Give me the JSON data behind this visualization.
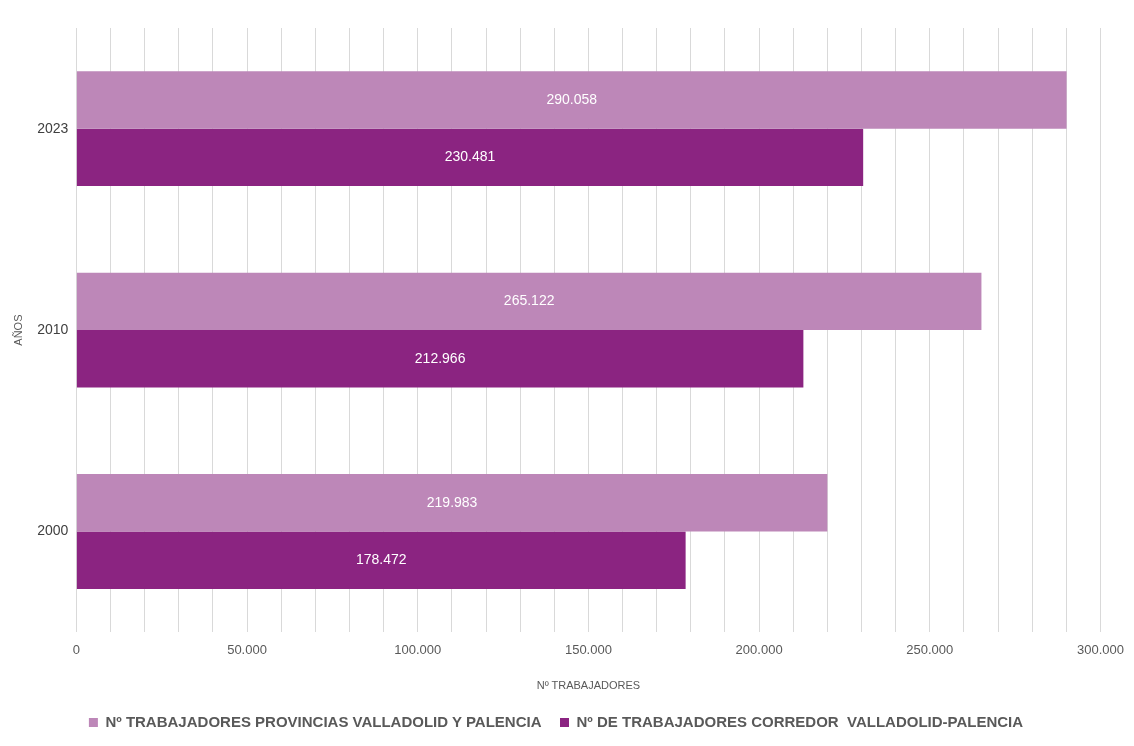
{
  "chart_data": {
    "type": "bar",
    "orientation": "horizontal",
    "categories": [
      "2023",
      "2010",
      "2000"
    ],
    "series": [
      {
        "name": "Nº TRABAJADORES PROVINCIAS VALLADOLID Y PALENCIA",
        "color": "#bd87b8",
        "values": [
          290058,
          265122,
          219983
        ],
        "value_labels": [
          "290.058",
          "265.122",
          "219.983"
        ]
      },
      {
        "name": "Nº DE TRABAJADORES CORREDOR  VALLADOLID-PALENCIA",
        "color": "#8b2481",
        "values": [
          230481,
          212966,
          178472
        ],
        "value_labels": [
          "230.481",
          "212.966",
          "178.472"
        ]
      }
    ],
    "xlabel": "Nº TRABAJADORES",
    "ylabel": "AÑOS",
    "xlim": [
      0,
      300000
    ],
    "xticks": [
      {
        "value": 0,
        "label": "0"
      },
      {
        "value": 10000,
        "label": null
      },
      {
        "value": 20000,
        "label": null
      },
      {
        "value": 30000,
        "label": null
      },
      {
        "value": 40000,
        "label": null
      },
      {
        "value": 50000,
        "label": "50.000"
      },
      {
        "value": 60000,
        "label": null
      },
      {
        "value": 70000,
        "label": null
      },
      {
        "value": 80000,
        "label": null
      },
      {
        "value": 90000,
        "label": null
      },
      {
        "value": 100000,
        "label": "100.000"
      },
      {
        "value": 110000,
        "label": null
      },
      {
        "value": 120000,
        "label": null
      },
      {
        "value": 130000,
        "label": null
      },
      {
        "value": 140000,
        "label": null
      },
      {
        "value": 150000,
        "label": "150.000"
      },
      {
        "value": 160000,
        "label": null
      },
      {
        "value": 170000,
        "label": null
      },
      {
        "value": 180000,
        "label": null
      },
      {
        "value": 190000,
        "label": null
      },
      {
        "value": 200000,
        "label": "200.000"
      },
      {
        "value": 210000,
        "label": null
      },
      {
        "value": 220000,
        "label": null
      },
      {
        "value": 230000,
        "label": null
      },
      {
        "value": 240000,
        "label": null
      },
      {
        "value": 250000,
        "label": "250.000"
      },
      {
        "value": 260000,
        "label": null
      },
      {
        "value": 270000,
        "label": null
      },
      {
        "value": 280000,
        "label": null
      },
      {
        "value": 290000,
        "label": null
      },
      {
        "value": 300000,
        "label": "300.000"
      }
    ],
    "grid": "x",
    "legend": "bottom"
  }
}
